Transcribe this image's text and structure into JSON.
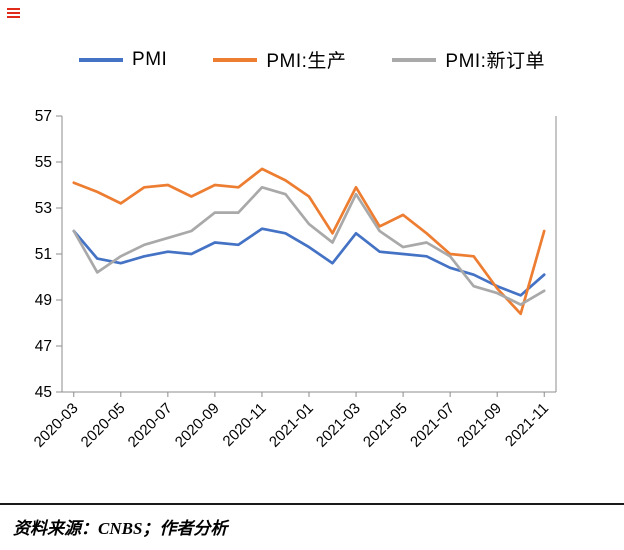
{
  "icons": {
    "top_left": "red-menu-glyph"
  },
  "source": {
    "text": "资料来源：CNBS；作者分析"
  },
  "chart_data": {
    "type": "line",
    "title": "",
    "xlabel": "",
    "ylabel": "",
    "x": [
      "2020-03",
      "2020-04",
      "2020-05",
      "2020-06",
      "2020-07",
      "2020-08",
      "2020-09",
      "2020-10",
      "2020-11",
      "2020-12",
      "2021-01",
      "2021-02",
      "2021-03",
      "2021-04",
      "2021-05",
      "2021-06",
      "2021-07",
      "2021-08",
      "2021-09",
      "2021-10",
      "2021-11"
    ],
    "x_tick_labels": [
      "2020-03",
      "2020-05",
      "2020-07",
      "2020-09",
      "2020-11",
      "2021-01",
      "2021-03",
      "2021-05",
      "2021-07",
      "2021-09",
      "2021-11"
    ],
    "series": [
      {
        "name": "PMI",
        "color": "#4472C4",
        "values": [
          52.0,
          50.8,
          50.6,
          50.9,
          51.1,
          51.0,
          51.5,
          51.4,
          52.1,
          51.9,
          51.3,
          50.6,
          51.9,
          51.1,
          51.0,
          50.9,
          50.4,
          50.1,
          49.6,
          49.2,
          50.1
        ]
      },
      {
        "name": "PMI:生产",
        "color": "#ED7D31",
        "values": [
          54.1,
          53.7,
          53.2,
          53.9,
          54.0,
          53.5,
          54.0,
          53.9,
          54.7,
          54.2,
          53.5,
          51.9,
          53.9,
          52.2,
          52.7,
          51.9,
          51.0,
          50.9,
          49.5,
          48.4,
          52.0
        ]
      },
      {
        "name": "PMI:新订单",
        "color": "#A9A9A9",
        "values": [
          52.0,
          50.2,
          50.9,
          51.4,
          51.7,
          52.0,
          52.8,
          52.8,
          53.9,
          53.6,
          52.3,
          51.5,
          53.6,
          52.0,
          51.3,
          51.5,
          50.9,
          49.6,
          49.3,
          48.8,
          49.4
        ]
      }
    ],
    "ylim": [
      45,
      57
    ],
    "yticks": [
      45,
      47,
      49,
      51,
      53,
      55,
      57
    ],
    "legend_position": "top",
    "grid": false,
    "axis_color": "#8c8c8c",
    "label_color": "#000000"
  }
}
